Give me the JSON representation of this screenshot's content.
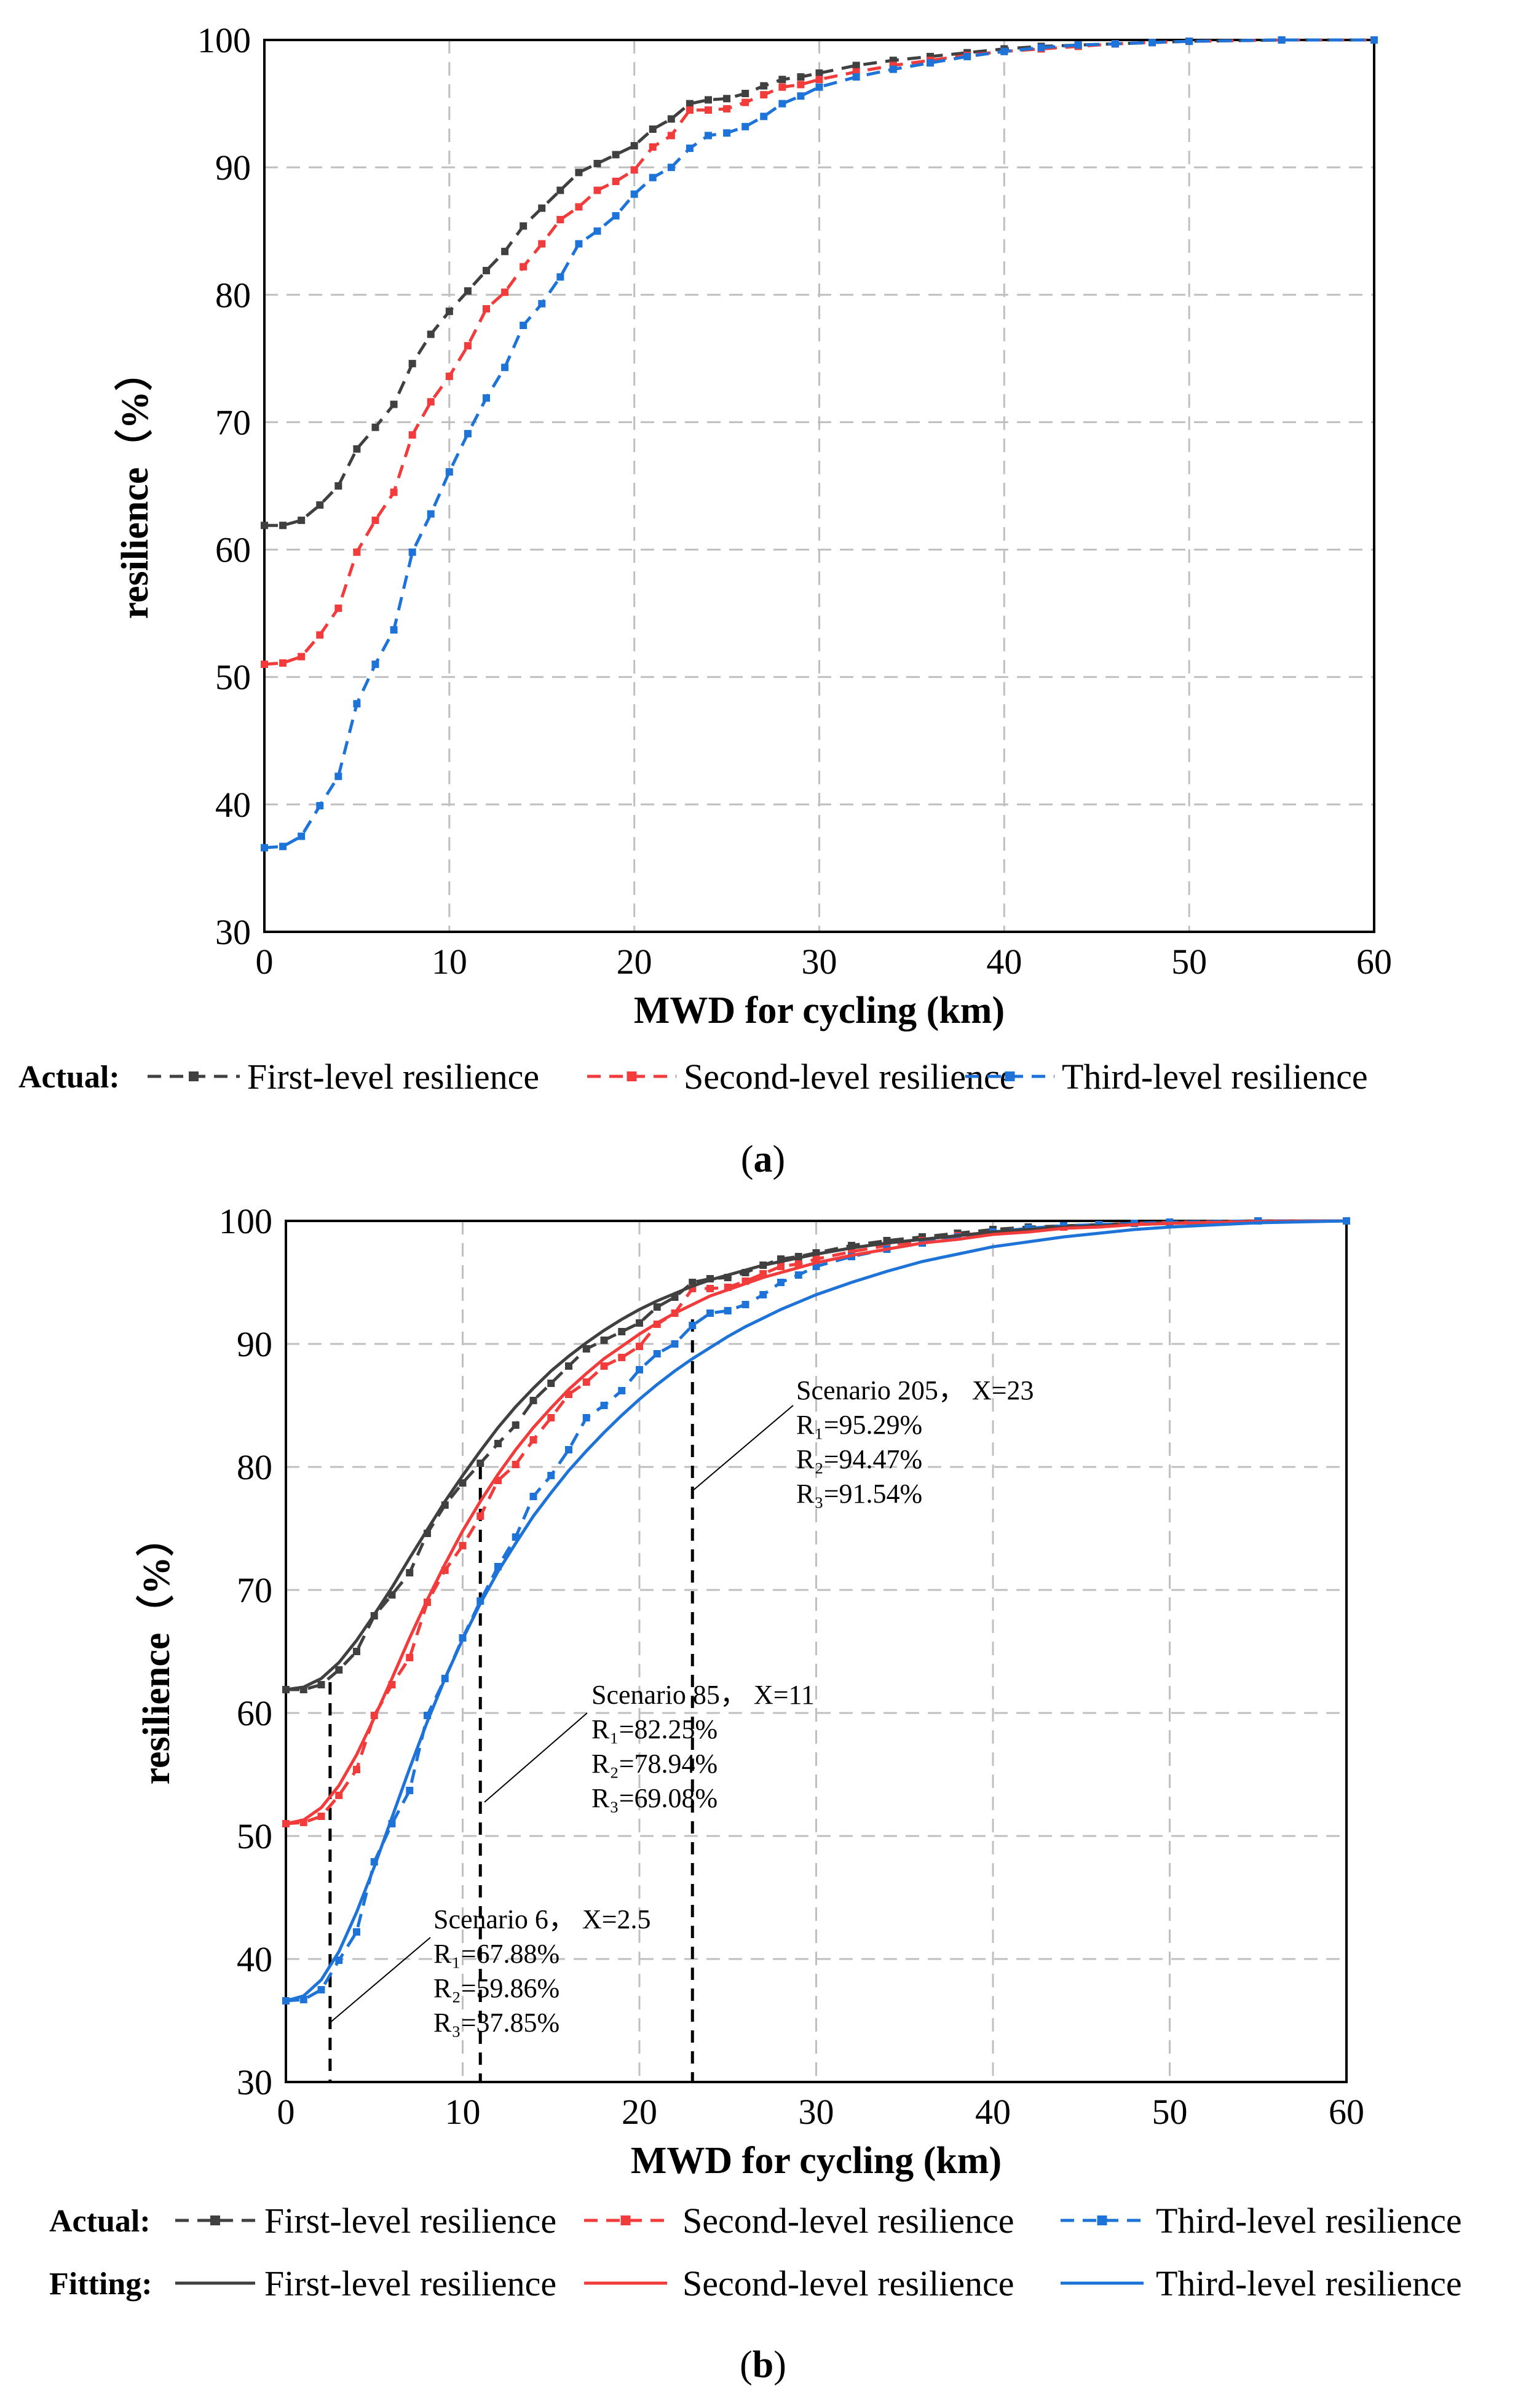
{
  "colors": {
    "first": "#404040",
    "second": "#F23B3B",
    "third": "#1E73D9",
    "grid": "#BFBFBF",
    "marker_line": "#000000"
  },
  "chart_data": [
    {
      "panel": "(a)",
      "panel_letter": "a",
      "type": "line",
      "xlabel": "MWD for cycling (km)",
      "ylabel": "resilience（%）",
      "xlim": [
        0,
        60
      ],
      "ylim": [
        30,
        100
      ],
      "xticks": [
        "0",
        "10",
        "20",
        "30",
        "40",
        "50",
        "60"
      ],
      "yticks": [
        "30",
        "40",
        "50",
        "60",
        "70",
        "80",
        "90",
        "100"
      ],
      "grid": "dashed",
      "legend": {
        "heading": "Actual:",
        "placement": "bottom"
      },
      "series": [
        {
          "name": "First-level resilience",
          "key": "first",
          "style": "dashed-marker",
          "x": [
            0,
            1,
            2,
            3,
            4,
            5,
            6,
            7,
            8,
            9,
            10,
            11,
            12,
            13,
            14,
            15,
            16,
            17,
            18,
            19,
            20,
            21,
            22,
            23,
            24,
            25,
            26,
            27,
            28,
            29,
            30,
            32,
            34,
            36,
            38,
            40,
            42,
            44,
            46,
            48,
            50,
            55,
            60
          ],
          "y": [
            61.9,
            61.9,
            62.3,
            63.5,
            65.0,
            67.9,
            69.6,
            71.4,
            74.6,
            76.9,
            78.7,
            80.3,
            81.9,
            83.4,
            85.4,
            86.8,
            88.2,
            89.6,
            90.3,
            91.0,
            91.7,
            93.0,
            93.8,
            95.0,
            95.3,
            95.4,
            95.8,
            96.4,
            96.9,
            97.1,
            97.4,
            98.0,
            98.4,
            98.7,
            99.0,
            99.3,
            99.5,
            99.6,
            99.7,
            99.8,
            99.9,
            100.0,
            100.0
          ]
        },
        {
          "name": "Second-level resilience",
          "key": "second",
          "style": "dashed-marker",
          "x": [
            0,
            1,
            2,
            3,
            4,
            5,
            6,
            7,
            8,
            9,
            10,
            11,
            12,
            13,
            14,
            15,
            16,
            17,
            18,
            19,
            20,
            21,
            22,
            23,
            24,
            25,
            26,
            27,
            28,
            29,
            30,
            32,
            34,
            36,
            38,
            40,
            42,
            44,
            46,
            48,
            50,
            55,
            60
          ],
          "y": [
            51.0,
            51.1,
            51.6,
            53.3,
            55.4,
            59.8,
            62.3,
            64.5,
            69.0,
            71.6,
            73.6,
            76.0,
            78.9,
            80.2,
            82.2,
            84.0,
            85.9,
            86.9,
            88.2,
            88.9,
            89.8,
            91.6,
            92.5,
            94.5,
            94.5,
            94.6,
            95.1,
            95.7,
            96.3,
            96.5,
            96.9,
            97.5,
            98.0,
            98.4,
            98.8,
            99.1,
            99.3,
            99.5,
            99.7,
            99.8,
            99.9,
            100.0,
            100.0
          ]
        },
        {
          "name": "Third-level resilience",
          "key": "third",
          "style": "dashed-marker",
          "x": [
            0,
            1,
            2,
            3,
            4,
            5,
            6,
            7,
            8,
            9,
            10,
            11,
            12,
            13,
            14,
            15,
            16,
            17,
            18,
            19,
            20,
            21,
            22,
            23,
            24,
            25,
            26,
            27,
            28,
            29,
            30,
            32,
            34,
            36,
            38,
            40,
            42,
            44,
            46,
            48,
            50,
            55,
            60
          ],
          "y": [
            36.6,
            36.7,
            37.5,
            39.9,
            42.2,
            47.9,
            51.0,
            53.7,
            59.8,
            62.8,
            66.1,
            69.1,
            71.9,
            74.3,
            77.6,
            79.3,
            81.4,
            84.0,
            85.0,
            86.2,
            87.9,
            89.2,
            90.0,
            91.5,
            92.5,
            92.7,
            93.2,
            94.0,
            95.0,
            95.6,
            96.3,
            97.1,
            97.7,
            98.2,
            98.7,
            99.1,
            99.4,
            99.6,
            99.7,
            99.8,
            99.9,
            100.0,
            100.0
          ]
        }
      ]
    },
    {
      "panel": "(b)",
      "panel_letter": "b",
      "type": "line",
      "xlabel": "MWD for cycling (km)",
      "ylabel": "resilience（%）",
      "xlim": [
        0,
        60
      ],
      "ylim": [
        30,
        100
      ],
      "xticks": [
        "0",
        "10",
        "20",
        "30",
        "40",
        "50",
        "60"
      ],
      "yticks": [
        "30",
        "40",
        "50",
        "60",
        "70",
        "80",
        "90",
        "100"
      ],
      "grid": "dashed",
      "legend": {
        "placement": "bottom",
        "rows": [
          {
            "heading": "Actual:",
            "style": "dashed-marker",
            "items": [
              "First-level resilience",
              "Second-level resilience",
              "Third-level resilience"
            ]
          },
          {
            "heading": "Fitting:",
            "style": "solid",
            "items": [
              "First-level resilience",
              "Second-level resilience",
              "Third-level resilience"
            ]
          }
        ]
      },
      "series": [
        {
          "name": "First-level resilience",
          "key": "first",
          "style": "dashed-marker",
          "x": [
            0,
            1,
            2,
            3,
            4,
            5,
            6,
            7,
            8,
            9,
            10,
            11,
            12,
            13,
            14,
            15,
            16,
            17,
            18,
            19,
            20,
            21,
            22,
            23,
            24,
            25,
            26,
            27,
            28,
            29,
            30,
            32,
            34,
            36,
            38,
            40,
            42,
            44,
            46,
            48,
            50,
            55,
            60
          ],
          "y": [
            61.9,
            61.9,
            62.3,
            63.5,
            65.0,
            67.9,
            69.6,
            71.4,
            74.6,
            76.9,
            78.7,
            80.3,
            81.9,
            83.4,
            85.4,
            86.8,
            88.2,
            89.6,
            90.3,
            91.0,
            91.7,
            93.0,
            93.8,
            95.0,
            95.3,
            95.4,
            95.8,
            96.4,
            96.9,
            97.1,
            97.4,
            98.0,
            98.4,
            98.7,
            99.0,
            99.3,
            99.5,
            99.6,
            99.7,
            99.8,
            99.9,
            100.0,
            100.0
          ]
        },
        {
          "name": "Second-level resilience",
          "key": "second",
          "style": "dashed-marker",
          "x": [
            0,
            1,
            2,
            3,
            4,
            5,
            6,
            7,
            8,
            9,
            10,
            11,
            12,
            13,
            14,
            15,
            16,
            17,
            18,
            19,
            20,
            21,
            22,
            23,
            24,
            25,
            26,
            27,
            28,
            29,
            30,
            32,
            34,
            36,
            38,
            40,
            42,
            44,
            46,
            48,
            50,
            55,
            60
          ],
          "y": [
            51.0,
            51.1,
            51.6,
            53.3,
            55.4,
            59.8,
            62.3,
            64.5,
            69.0,
            71.6,
            73.6,
            76.0,
            78.9,
            80.2,
            82.2,
            84.0,
            85.9,
            86.9,
            88.2,
            88.9,
            89.8,
            91.6,
            92.5,
            94.5,
            94.5,
            94.6,
            95.1,
            95.7,
            96.3,
            96.5,
            96.9,
            97.5,
            98.0,
            98.4,
            98.8,
            99.1,
            99.3,
            99.5,
            99.7,
            99.8,
            99.9,
            100.0,
            100.0
          ]
        },
        {
          "name": "Third-level resilience",
          "key": "third",
          "style": "dashed-marker",
          "x": [
            0,
            1,
            2,
            3,
            4,
            5,
            6,
            7,
            8,
            9,
            10,
            11,
            12,
            13,
            14,
            15,
            16,
            17,
            18,
            19,
            20,
            21,
            22,
            23,
            24,
            25,
            26,
            27,
            28,
            29,
            30,
            32,
            34,
            36,
            38,
            40,
            42,
            44,
            46,
            48,
            50,
            55,
            60
          ],
          "y": [
            36.6,
            36.7,
            37.5,
            39.9,
            42.2,
            47.9,
            51.0,
            53.7,
            59.8,
            62.8,
            66.1,
            69.1,
            71.9,
            74.3,
            77.6,
            79.3,
            81.4,
            84.0,
            85.0,
            86.2,
            87.9,
            89.2,
            90.0,
            91.5,
            92.5,
            92.7,
            93.2,
            94.0,
            95.0,
            95.6,
            96.3,
            97.1,
            97.7,
            98.2,
            98.7,
            99.1,
            99.4,
            99.6,
            99.7,
            99.8,
            99.9,
            100.0,
            100.0
          ]
        },
        {
          "name": "First-level resilience",
          "key": "first",
          "style": "solid",
          "x": [
            0,
            1,
            2,
            3,
            4,
            5,
            6,
            7,
            8,
            9,
            10,
            11,
            12,
            13,
            14,
            15,
            16,
            17,
            18,
            19,
            20,
            21,
            22,
            23,
            24,
            25,
            26,
            27,
            28,
            29,
            30,
            32,
            34,
            36,
            38,
            40,
            42,
            44,
            46,
            48,
            50,
            55,
            60
          ],
          "y": [
            61.9,
            62.1,
            62.8,
            64.1,
            65.9,
            68.0,
            70.2,
            72.6,
            74.9,
            77.2,
            79.3,
            81.3,
            83.2,
            84.9,
            86.4,
            87.8,
            89.0,
            90.1,
            91.1,
            92.0,
            92.8,
            93.5,
            94.1,
            94.7,
            95.2,
            95.6,
            96.0,
            96.4,
            96.7,
            97.0,
            97.3,
            97.8,
            98.2,
            98.5,
            98.8,
            99.1,
            99.3,
            99.5,
            99.6,
            99.7,
            99.8,
            99.95,
            100.0
          ]
        },
        {
          "name": "Second-level resilience",
          "key": "second",
          "style": "solid",
          "x": [
            0,
            1,
            2,
            3,
            4,
            5,
            6,
            7,
            8,
            9,
            10,
            11,
            12,
            13,
            14,
            15,
            16,
            17,
            18,
            19,
            20,
            21,
            22,
            23,
            24,
            25,
            26,
            27,
            28,
            29,
            30,
            32,
            34,
            36,
            38,
            40,
            42,
            44,
            46,
            48,
            50,
            55,
            60
          ],
          "y": [
            51.0,
            51.3,
            52.3,
            54.1,
            56.6,
            59.6,
            62.8,
            66.1,
            69.2,
            72.1,
            74.8,
            77.2,
            79.4,
            81.4,
            83.2,
            84.8,
            86.3,
            87.6,
            88.8,
            89.8,
            90.8,
            91.7,
            92.5,
            93.2,
            93.9,
            94.4,
            94.9,
            95.4,
            95.8,
            96.2,
            96.6,
            97.2,
            97.7,
            98.2,
            98.5,
            98.9,
            99.1,
            99.4,
            99.5,
            99.7,
            99.8,
            99.95,
            100.0
          ]
        },
        {
          "name": "Third-level resilience",
          "key": "third",
          "style": "solid",
          "x": [
            0,
            1,
            2,
            3,
            4,
            5,
            6,
            7,
            8,
            9,
            10,
            11,
            12,
            13,
            14,
            15,
            16,
            17,
            18,
            19,
            20,
            21,
            22,
            23,
            24,
            25,
            26,
            27,
            28,
            29,
            30,
            32,
            34,
            36,
            38,
            40,
            42,
            44,
            46,
            48,
            50,
            55,
            60
          ],
          "y": [
            36.6,
            37.0,
            38.3,
            40.6,
            43.8,
            47.5,
            51.5,
            55.5,
            59.3,
            62.8,
            66.0,
            68.9,
            71.5,
            73.8,
            76.0,
            77.9,
            79.7,
            81.3,
            82.8,
            84.2,
            85.5,
            86.7,
            87.8,
            88.8,
            89.7,
            90.6,
            91.4,
            92.1,
            92.8,
            93.4,
            94.0,
            95.0,
            95.9,
            96.7,
            97.3,
            97.9,
            98.3,
            98.7,
            99.0,
            99.3,
            99.5,
            99.85,
            100.0
          ]
        }
      ],
      "annotations": [
        {
          "x": 2.5,
          "y_top": 62.5,
          "title": "Scenario 6， X=2.5",
          "r1": "R₁=67.88%",
          "r2": "R₂=59.86%",
          "r3": "R₃=37.85%"
        },
        {
          "x": 11,
          "y_top": 80,
          "title": "Scenario 85， X=11",
          "r1": "R₁=82.25%",
          "r2": "R₂=78.94%",
          "r3": "R₃=69.08%"
        },
        {
          "x": 23,
          "y_top": 92,
          "title": "Scenario 205， X=23",
          "r1": "R₁=95.29%",
          "r2": "R₂=94.47%",
          "r3": "R₃=91.54%"
        }
      ]
    }
  ]
}
